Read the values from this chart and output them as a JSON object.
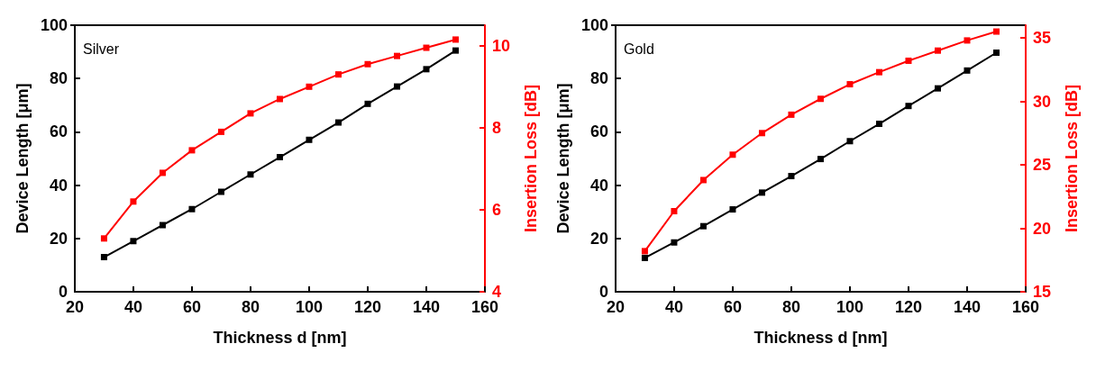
{
  "chart_data": [
    {
      "type": "line",
      "annotations": [
        "Silver"
      ],
      "xlabel": "Thickness d [nm]",
      "ylabel": "Device Length [μm]",
      "y2label": "Insertion Loss [dB]",
      "x": [
        30,
        40,
        50,
        60,
        70,
        80,
        90,
        100,
        110,
        120,
        130,
        140,
        150
      ],
      "xlim": [
        20,
        160
      ],
      "xticks": [
        20,
        40,
        60,
        80,
        100,
        120,
        140,
        160
      ],
      "ylim": [
        0,
        100
      ],
      "yticks": [
        0,
        20,
        40,
        60,
        80,
        100
      ],
      "y2lim": [
        4,
        10.5
      ],
      "y2ticks": [
        4,
        6,
        8,
        10
      ],
      "marker": "square",
      "line_style": "solid",
      "grid": false,
      "series": [
        {
          "color": "#000000",
          "values": [
            13,
            19,
            25,
            31,
            37.5,
            44,
            50.5,
            57,
            63.5,
            70.5,
            77,
            83.5,
            90.5
          ]
        },
        {
          "color": "#ff0000",
          "axis": "y2",
          "values": [
            5.3,
            6.2,
            6.9,
            7.45,
            7.9,
            8.35,
            8.7,
            9.0,
            9.3,
            9.55,
            9.75,
            9.95,
            10.15
          ]
        }
      ]
    },
    {
      "type": "line",
      "annotations": [
        "Gold"
      ],
      "xlabel": "Thickness d [nm]",
      "ylabel": "Device Length [μm]",
      "y2label": "Insertion Loss [dB]",
      "x": [
        30,
        40,
        50,
        60,
        70,
        80,
        90,
        100,
        110,
        120,
        130,
        140,
        150
      ],
      "xlim": [
        20,
        160
      ],
      "xticks": [
        20,
        40,
        60,
        80,
        100,
        120,
        140,
        160
      ],
      "ylim": [
        0,
        100
      ],
      "yticks": [
        0,
        20,
        40,
        60,
        80,
        100
      ],
      "y2lim": [
        15,
        36
      ],
      "y2ticks": [
        15,
        20,
        25,
        30,
        35
      ],
      "marker": "square",
      "line_style": "solid",
      "grid": false,
      "series": [
        {
          "color": "#000000",
          "values": [
            12.7,
            18.5,
            24.6,
            30.9,
            37.2,
            43.4,
            49.8,
            56.5,
            63,
            69.7,
            76.3,
            83,
            89.7
          ]
        },
        {
          "color": "#ff0000",
          "axis": "y2",
          "values": [
            18.2,
            21.35,
            23.8,
            25.8,
            27.5,
            28.95,
            30.2,
            31.35,
            32.3,
            33.2,
            34.0,
            34.8,
            35.5
          ]
        }
      ]
    }
  ]
}
